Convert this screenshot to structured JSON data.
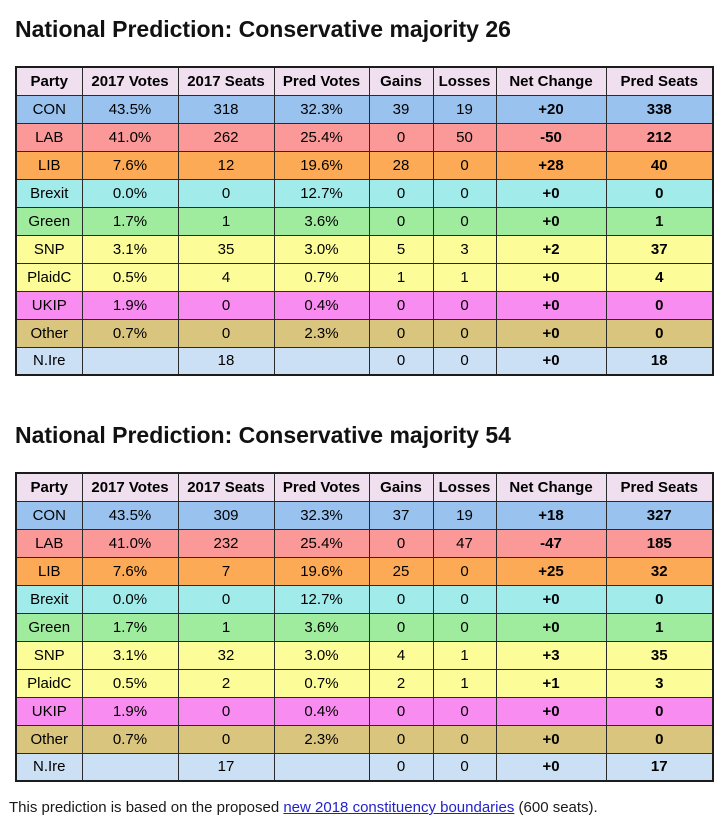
{
  "footer": {
    "text_before": "This prediction is based on the proposed ",
    "link_text": "new 2018 constituency boundaries",
    "text_after": " (600 seats).",
    "link_color": "#2222cc"
  },
  "colors": {
    "header_bg": "#efdfef",
    "table_border": "#1c1c1c",
    "page_bg": "#ffffff"
  },
  "tables": [
    {
      "title": "National Prediction: Conservative majority 26",
      "columns": [
        "Party",
        "2017 Votes",
        "2017 Seats",
        "Pred Votes",
        "Gains",
        "Losses",
        "Net Change",
        "Pred Seats"
      ],
      "rows": [
        {
          "party": "CON",
          "v17": "43.5%",
          "s17": "318",
          "pv": "32.3%",
          "g": "39",
          "l": "19",
          "nc": "+20",
          "ps": "338",
          "bg": "#99c2ee"
        },
        {
          "party": "LAB",
          "v17": "41.0%",
          "s17": "262",
          "pv": "25.4%",
          "g": "0",
          "l": "50",
          "nc": "-50",
          "ps": "212",
          "bg": "#fb9898"
        },
        {
          "party": "LIB",
          "v17": "7.6%",
          "s17": "12",
          "pv": "19.6%",
          "g": "28",
          "l": "0",
          "nc": "+28",
          "ps": "40",
          "bg": "#fcaa55"
        },
        {
          "party": "Brexit",
          "v17": "0.0%",
          "s17": "0",
          "pv": "12.7%",
          "g": "0",
          "l": "0",
          "nc": "+0",
          "ps": "0",
          "bg": "#a2ebeb"
        },
        {
          "party": "Green",
          "v17": "1.7%",
          "s17": "1",
          "pv": "3.6%",
          "g": "0",
          "l": "0",
          "nc": "+0",
          "ps": "1",
          "bg": "#9fec9f"
        },
        {
          "party": "SNP",
          "v17": "3.1%",
          "s17": "35",
          "pv": "3.0%",
          "g": "5",
          "l": "3",
          "nc": "+2",
          "ps": "37",
          "bg": "#fcfc99"
        },
        {
          "party": "PlaidC",
          "v17": "0.5%",
          "s17": "4",
          "pv": "0.7%",
          "g": "1",
          "l": "1",
          "nc": "+0",
          "ps": "4",
          "bg": "#fcfc99"
        },
        {
          "party": "UKIP",
          "v17": "1.9%",
          "s17": "0",
          "pv": "0.4%",
          "g": "0",
          "l": "0",
          "nc": "+0",
          "ps": "0",
          "bg": "#f88cf0"
        },
        {
          "party": "Other",
          "v17": "0.7%",
          "s17": "0",
          "pv": "2.3%",
          "g": "0",
          "l": "0",
          "nc": "+0",
          "ps": "0",
          "bg": "#d9c57e"
        },
        {
          "party": "N.Ire",
          "v17": "",
          "s17": "18",
          "pv": "",
          "g": "0",
          "l": "0",
          "nc": "+0",
          "ps": "18",
          "bg": "#cce0f5"
        }
      ]
    },
    {
      "title": "National Prediction: Conservative majority 54",
      "columns": [
        "Party",
        "2017 Votes",
        "2017 Seats",
        "Pred Votes",
        "Gains",
        "Losses",
        "Net Change",
        "Pred Seats"
      ],
      "rows": [
        {
          "party": "CON",
          "v17": "43.5%",
          "s17": "309",
          "pv": "32.3%",
          "g": "37",
          "l": "19",
          "nc": "+18",
          "ps": "327",
          "bg": "#99c2ee"
        },
        {
          "party": "LAB",
          "v17": "41.0%",
          "s17": "232",
          "pv": "25.4%",
          "g": "0",
          "l": "47",
          "nc": "-47",
          "ps": "185",
          "bg": "#fb9898"
        },
        {
          "party": "LIB",
          "v17": "7.6%",
          "s17": "7",
          "pv": "19.6%",
          "g": "25",
          "l": "0",
          "nc": "+25",
          "ps": "32",
          "bg": "#fcaa55"
        },
        {
          "party": "Brexit",
          "v17": "0.0%",
          "s17": "0",
          "pv": "12.7%",
          "g": "0",
          "l": "0",
          "nc": "+0",
          "ps": "0",
          "bg": "#a2ebeb"
        },
        {
          "party": "Green",
          "v17": "1.7%",
          "s17": "1",
          "pv": "3.6%",
          "g": "0",
          "l": "0",
          "nc": "+0",
          "ps": "1",
          "bg": "#9fec9f"
        },
        {
          "party": "SNP",
          "v17": "3.1%",
          "s17": "32",
          "pv": "3.0%",
          "g": "4",
          "l": "1",
          "nc": "+3",
          "ps": "35",
          "bg": "#fcfc99"
        },
        {
          "party": "PlaidC",
          "v17": "0.5%",
          "s17": "2",
          "pv": "0.7%",
          "g": "2",
          "l": "1",
          "nc": "+1",
          "ps": "3",
          "bg": "#fcfc99"
        },
        {
          "party": "UKIP",
          "v17": "1.9%",
          "s17": "0",
          "pv": "0.4%",
          "g": "0",
          "l": "0",
          "nc": "+0",
          "ps": "0",
          "bg": "#f88cf0"
        },
        {
          "party": "Other",
          "v17": "0.7%",
          "s17": "0",
          "pv": "2.3%",
          "g": "0",
          "l": "0",
          "nc": "+0",
          "ps": "0",
          "bg": "#d9c57e"
        },
        {
          "party": "N.Ire",
          "v17": "",
          "s17": "17",
          "pv": "",
          "g": "0",
          "l": "0",
          "nc": "+0",
          "ps": "17",
          "bg": "#cce0f5"
        }
      ]
    }
  ]
}
